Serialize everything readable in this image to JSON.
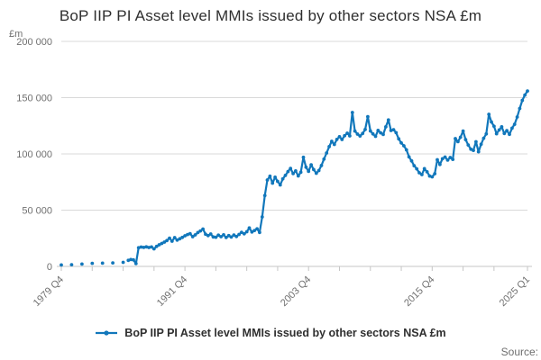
{
  "header": {
    "title": "BoP IIP PI Asset level MMIs issued by other sectors NSA £m"
  },
  "footer": {
    "source_label": "Source:"
  },
  "style": {
    "accent": "#1177bb",
    "grid_color": "#d9d9d9",
    "axis_color": "#c6c6c6",
    "text_muted": "#707070",
    "text_dark": "#2f2f2f"
  },
  "chart_data": {
    "type": "line",
    "title": "BoP IIP PI Asset level MMIs issued by other sectors NSA £m",
    "ylabel": "£m",
    "xlabel": "",
    "ylim": [
      0,
      200000
    ],
    "grid": "horizontal",
    "legend_position": "bottom",
    "y_ticks": [
      {
        "value": 0,
        "label": "0"
      },
      {
        "value": 50000,
        "label": "50 000"
      },
      {
        "value": 100000,
        "label": "100 000"
      },
      {
        "value": 150000,
        "label": "150 000"
      },
      {
        "value": 200000,
        "label": "200 000"
      }
    ],
    "x_minor_tick_step": 12,
    "x_labeled_ticks": [
      {
        "index": 0,
        "label": "1979 Q4"
      },
      {
        "index": 48,
        "label": "1991 Q4"
      },
      {
        "index": 96,
        "label": "2003 Q4"
      },
      {
        "index": 144,
        "label": "2015 Q4"
      },
      {
        "index": 181,
        "label": "2025 Q1"
      }
    ],
    "series": [
      {
        "name": "BoP IIP PI Asset level MMIs issued by other sectors NSA £m",
        "color": "#1177bb",
        "points": [
          [
            "1979 Q4",
            1300
          ],
          [
            "1980 Q1",
            null
          ],
          [
            "1980 Q2",
            null
          ],
          [
            "1980 Q3",
            null
          ],
          [
            "1980 Q4",
            1500
          ],
          [
            "1981 Q1",
            null
          ],
          [
            "1981 Q2",
            null
          ],
          [
            "1981 Q3",
            null
          ],
          [
            "1981 Q4",
            2100
          ],
          [
            "1982 Q1",
            null
          ],
          [
            "1982 Q2",
            null
          ],
          [
            "1982 Q3",
            null
          ],
          [
            "1982 Q4",
            2700
          ],
          [
            "1983 Q1",
            null
          ],
          [
            "1983 Q2",
            null
          ],
          [
            "1983 Q3",
            null
          ],
          [
            "1983 Q4",
            2900
          ],
          [
            "1984 Q1",
            null
          ],
          [
            "1984 Q2",
            null
          ],
          [
            "1984 Q3",
            null
          ],
          [
            "1984 Q4",
            3100
          ],
          [
            "1985 Q1",
            null
          ],
          [
            "1985 Q2",
            null
          ],
          [
            "1985 Q3",
            null
          ],
          [
            "1985 Q4",
            3600
          ],
          [
            "1986 Q1",
            null
          ],
          [
            "1986 Q2",
            5400
          ],
          [
            "1986 Q3",
            6100
          ],
          [
            "1986 Q4",
            5800
          ],
          [
            "1987 Q1",
            2500
          ],
          [
            "1987 Q2",
            16600
          ],
          [
            "1987 Q3",
            17200
          ],
          [
            "1987 Q4",
            16900
          ],
          [
            "1988 Q1",
            17400
          ],
          [
            "1988 Q2",
            16800
          ],
          [
            "1988 Q3",
            17300
          ],
          [
            "1988 Q4",
            15600
          ],
          [
            "1989 Q1",
            17800
          ],
          [
            "1989 Q2",
            19200
          ],
          [
            "1989 Q3",
            20400
          ],
          [
            "1989 Q4",
            21600
          ],
          [
            "1990 Q1",
            23000
          ],
          [
            "1990 Q2",
            25100
          ],
          [
            "1990 Q3",
            22400
          ],
          [
            "1990 Q4",
            25600
          ],
          [
            "1991 Q1",
            23400
          ],
          [
            "1991 Q2",
            24600
          ],
          [
            "1991 Q3",
            25800
          ],
          [
            "1991 Q4",
            27200
          ],
          [
            "1992 Q1",
            28300
          ],
          [
            "1992 Q2",
            29100
          ],
          [
            "1992 Q3",
            26400
          ],
          [
            "1992 Q4",
            28000
          ],
          [
            "1993 Q1",
            30100
          ],
          [
            "1993 Q2",
            31500
          ],
          [
            "1993 Q3",
            33200
          ],
          [
            "1993 Q4",
            28600
          ],
          [
            "1994 Q1",
            27400
          ],
          [
            "1994 Q2",
            28800
          ],
          [
            "1994 Q3",
            26200
          ],
          [
            "1994 Q4",
            25900
          ],
          [
            "1995 Q1",
            27800
          ],
          [
            "1995 Q2",
            26400
          ],
          [
            "1995 Q3",
            28100
          ],
          [
            "1995 Q4",
            25700
          ],
          [
            "1996 Q1",
            27400
          ],
          [
            "1996 Q2",
            26100
          ],
          [
            "1996 Q3",
            27900
          ],
          [
            "1996 Q4",
            26600
          ],
          [
            "1997 Q1",
            28400
          ],
          [
            "1997 Q2",
            30300
          ],
          [
            "1997 Q3",
            29000
          ],
          [
            "1997 Q4",
            30800
          ],
          [
            "1998 Q1",
            34200
          ],
          [
            "1998 Q2",
            30600
          ],
          [
            "1998 Q3",
            31900
          ],
          [
            "1998 Q4",
            33400
          ],
          [
            "1999 Q1",
            30200
          ],
          [
            "1999 Q2",
            44000
          ],
          [
            "1999 Q3",
            63000
          ],
          [
            "1999 Q4",
            76800
          ],
          [
            "2000 Q1",
            80200
          ],
          [
            "2000 Q2",
            74000
          ],
          [
            "2000 Q3",
            79300
          ],
          [
            "2000 Q4",
            75600
          ],
          [
            "2001 Q1",
            72400
          ],
          [
            "2001 Q2",
            77800
          ],
          [
            "2001 Q3",
            80900
          ],
          [
            "2001 Q4",
            84300
          ],
          [
            "2002 Q1",
            87100
          ],
          [
            "2002 Q2",
            82500
          ],
          [
            "2002 Q3",
            84900
          ],
          [
            "2002 Q4",
            80400
          ],
          [
            "2003 Q1",
            83700
          ],
          [
            "2003 Q2",
            97000
          ],
          [
            "2003 Q3",
            88200
          ],
          [
            "2003 Q4",
            84500
          ],
          [
            "2004 Q1",
            90300
          ],
          [
            "2004 Q2",
            86100
          ],
          [
            "2004 Q3",
            82800
          ],
          [
            "2004 Q4",
            85200
          ],
          [
            "2005 Q1",
            89700
          ],
          [
            "2005 Q2",
            95400
          ],
          [
            "2005 Q3",
            100800
          ],
          [
            "2005 Q4",
            106500
          ],
          [
            "2006 Q1",
            111200
          ],
          [
            "2006 Q2",
            108400
          ],
          [
            "2006 Q3",
            112900
          ],
          [
            "2006 Q4",
            115300
          ],
          [
            "2007 Q1",
            112800
          ],
          [
            "2007 Q2",
            116200
          ],
          [
            "2007 Q3",
            118400
          ],
          [
            "2007 Q4",
            116000
          ],
          [
            "2008 Q1",
            136800
          ],
          [
            "2008 Q2",
            120300
          ],
          [
            "2008 Q3",
            117600
          ],
          [
            "2008 Q4",
            115900
          ],
          [
            "2009 Q1",
            118200
          ],
          [
            "2009 Q2",
            121700
          ],
          [
            "2009 Q3",
            133100
          ],
          [
            "2009 Q4",
            120400
          ],
          [
            "2010 Q1",
            117800
          ],
          [
            "2010 Q2",
            115600
          ],
          [
            "2010 Q3",
            120900
          ],
          [
            "2010 Q4",
            118700
          ],
          [
            "2011 Q1",
            117300
          ],
          [
            "2011 Q2",
            124100
          ],
          [
            "2011 Q3",
            130200
          ],
          [
            "2011 Q4",
            120800
          ],
          [
            "2012 Q1",
            121500
          ],
          [
            "2012 Q2",
            118900
          ],
          [
            "2012 Q3",
            113400
          ],
          [
            "2012 Q4",
            109800
          ],
          [
            "2013 Q1",
            107200
          ],
          [
            "2013 Q2",
            103600
          ],
          [
            "2013 Q3",
            97400
          ],
          [
            "2013 Q4",
            93800
          ],
          [
            "2014 Q1",
            89500
          ],
          [
            "2014 Q2",
            86700
          ],
          [
            "2014 Q3",
            83200
          ],
          [
            "2014 Q4",
            81600
          ],
          [
            "2015 Q1",
            86900
          ],
          [
            "2015 Q2",
            84100
          ],
          [
            "2015 Q3",
            80300
          ],
          [
            "2015 Q4",
            79600
          ],
          [
            "2016 Q1",
            82400
          ],
          [
            "2016 Q2",
            94800
          ],
          [
            "2016 Q3",
            90600
          ],
          [
            "2016 Q4",
            95700
          ],
          [
            "2017 Q1",
            97200
          ],
          [
            "2017 Q2",
            94500
          ],
          [
            "2017 Q3",
            96800
          ],
          [
            "2017 Q4",
            95100
          ],
          [
            "2018 Q1",
            113600
          ],
          [
            "2018 Q2",
            110900
          ],
          [
            "2018 Q3",
            114800
          ],
          [
            "2018 Q4",
            120300
          ],
          [
            "2019 Q1",
            112700
          ],
          [
            "2019 Q2",
            107900
          ],
          [
            "2019 Q3",
            104200
          ],
          [
            "2019 Q4",
            103100
          ],
          [
            "2020 Q1",
            110800
          ],
          [
            "2020 Q2",
            101900
          ],
          [
            "2020 Q3",
            108600
          ],
          [
            "2020 Q4",
            113900
          ],
          [
            "2021 Q1",
            117800
          ],
          [
            "2021 Q2",
            135200
          ],
          [
            "2021 Q3",
            128400
          ],
          [
            "2021 Q4",
            124600
          ],
          [
            "2022 Q1",
            117900
          ],
          [
            "2022 Q2",
            121300
          ],
          [
            "2022 Q3",
            124100
          ],
          [
            "2022 Q4",
            118200
          ],
          [
            "2023 Q1",
            120700
          ],
          [
            "2023 Q2",
            117400
          ],
          [
            "2023 Q3",
            122900
          ],
          [
            "2023 Q4",
            126300
          ],
          [
            "2024 Q1",
            132800
          ],
          [
            "2024 Q2",
            140400
          ],
          [
            "2024 Q3",
            147600
          ],
          [
            "2024 Q4",
            152300
          ],
          [
            "2025 Q1",
            155900
          ]
        ]
      }
    ]
  }
}
